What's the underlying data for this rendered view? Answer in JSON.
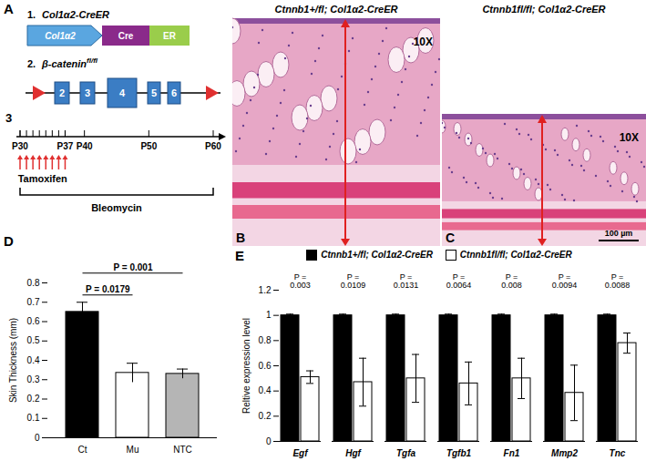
{
  "panels": {
    "A": {
      "label": "A",
      "construct1": {
        "number": "1.",
        "name": "Col1α2-CreER",
        "parts": [
          "Col1α2",
          "Cre",
          "ER"
        ]
      },
      "construct2": {
        "number": "2.",
        "name": "β-catenin",
        "superscript": "fl/fl",
        "exons": [
          "2",
          "3",
          "4",
          "5",
          "6"
        ]
      },
      "timeline": {
        "number": "3",
        "labels": [
          "P30",
          "P37",
          "P40",
          "P50",
          "P60"
        ],
        "treatment1": "Tamoxifen",
        "treatment2": "Bleomycin"
      }
    },
    "B": {
      "label": "B",
      "title": "Ctnnb1+/fl; Col1α2-CreER",
      "magnification": "10X"
    },
    "C": {
      "label": "C",
      "title": "Ctnnb1fl/fl; Col1α2-CreER",
      "magnification": "10X",
      "scale_bar": "100 µm"
    },
    "D": {
      "label": "D"
    },
    "E": {
      "label": "E"
    }
  },
  "chart_data": [
    {
      "type": "bar",
      "categories": [
        "Ct",
        "Mu",
        "NTC"
      ],
      "values": [
        0.65,
        0.335,
        0.33
      ],
      "errors": [
        0.05,
        0.05,
        0.025
      ],
      "colors": [
        "#000000",
        "#ffffff",
        "#b5b5b5"
      ],
      "y_label": "Skin Thickness (mm)",
      "ylim": [
        0,
        0.8
      ],
      "yticks": [
        0,
        0.1,
        0.2,
        0.3,
        0.4,
        0.5,
        0.6,
        0.7,
        0.8
      ],
      "annotations": [
        {
          "text": "P = 0.0179",
          "from": "Ct",
          "to": "Mu"
        },
        {
          "text": "P = 0.001",
          "from": "Ct",
          "to": "NTC"
        }
      ]
    },
    {
      "type": "bar",
      "categories": [
        "Egf",
        "Hgf",
        "Tgfa",
        "Tgfb1",
        "Fn1",
        "Mmp2",
        "Tnc"
      ],
      "series": [
        {
          "name": "Ctnnb1+/fl; Col1α2-CreER",
          "color": "#000000",
          "values": [
            1,
            1,
            1,
            1,
            1,
            1,
            1
          ],
          "errors": [
            0.01,
            0.01,
            0.01,
            0.01,
            0.01,
            0.01,
            0.01
          ]
        },
        {
          "name": "Ctnnb1fl/fl; Col1α2-CreER",
          "color": "#ffffff",
          "values": [
            0.51,
            0.47,
            0.5,
            0.46,
            0.5,
            0.385,
            0.78
          ],
          "errors": [
            0.05,
            0.19,
            0.19,
            0.17,
            0.16,
            0.22,
            0.08
          ]
        }
      ],
      "y_label": "Reltive expression level",
      "ylim": [
        0,
        1.2
      ],
      "yticks": [
        0,
        0.2,
        0.4,
        0.6,
        0.8,
        1,
        1.2
      ],
      "p_value_labels": [
        "P =\n0.003",
        "P =\n0.0109",
        "P =\n0.0131",
        "P =\n0.0064",
        "P =\n0.008",
        "P =\n0.0094",
        "P =\n0.0088"
      ],
      "legend": "top"
    }
  ]
}
